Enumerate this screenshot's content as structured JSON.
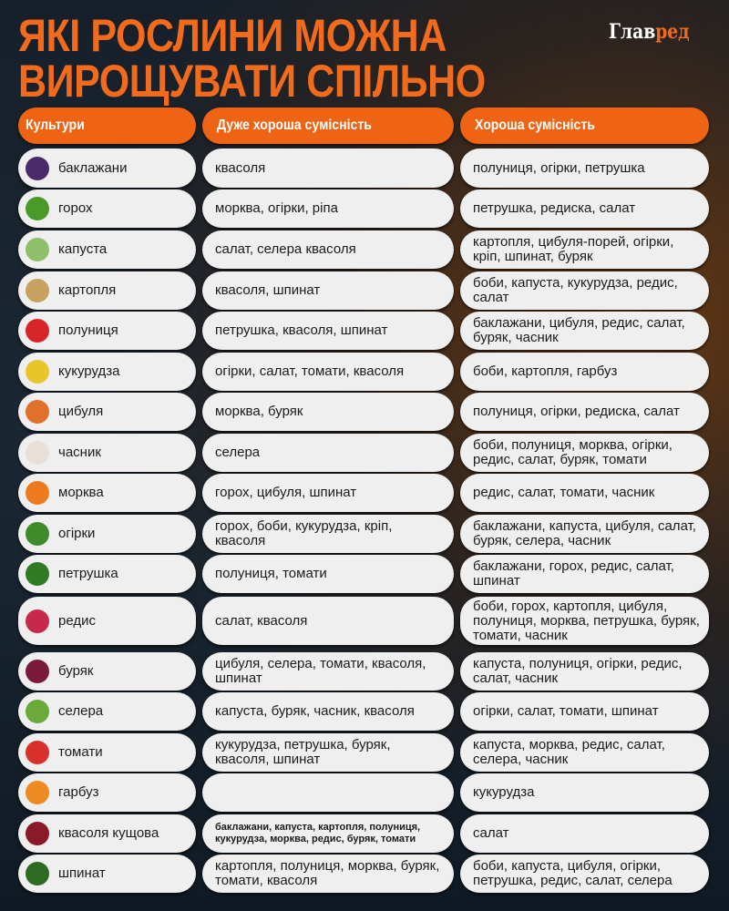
{
  "title": {
    "line1": "ЯКІ РОСЛИНИ МОЖНА",
    "line2": "ВИРОЩУВАТИ СПІЛЬНО"
  },
  "logo": {
    "part1": "Глав",
    "part2": "ред"
  },
  "colors": {
    "accent": "#ef6414",
    "cell": "#efefef"
  },
  "headers": [
    "Культури",
    "Дуже хороша сумісність",
    "Хороша сумісність"
  ],
  "rows": [
    {
      "crop": "баклажани",
      "icon": "eggplant-icon",
      "color": "#4b2a6b",
      "very_good": "квасоля",
      "good": "полуниця, огірки, петрушка"
    },
    {
      "crop": "горох",
      "icon": "peas-icon",
      "color": "#4a9a2a",
      "very_good": "морква, огірки, ріпа",
      "good": "петрушка, редиска, салат"
    },
    {
      "crop": "капуста",
      "icon": "cabbage-icon",
      "color": "#8fbf6a",
      "very_good": "салат, селера квасоля",
      "good": "картопля, цибуля-порей, огірки, кріп, шпинат, буряк"
    },
    {
      "crop": "картопля",
      "icon": "potato-icon",
      "color": "#c8a060",
      "very_good": "квасоля, шпинат",
      "good": "боби, капуста, кукурудза, редис, салат"
    },
    {
      "crop": "полуниця",
      "icon": "strawberry-icon",
      "color": "#d8252a",
      "very_good": "петрушка, квасоля, шпинат",
      "good": "баклажани, цибуля, редис, салат, буряк, часник"
    },
    {
      "crop": "кукурудза",
      "icon": "corn-icon",
      "color": "#e8c62a",
      "very_good": "огірки, салат, томати, квасоля",
      "good": "боби, картопля, гарбуз"
    },
    {
      "crop": "цибуля",
      "icon": "onion-icon",
      "color": "#e0702a",
      "very_good": "морква, буряк",
      "good": "полуниця, огірки, редиска, салат"
    },
    {
      "crop": "часник",
      "icon": "garlic-icon",
      "color": "#e8e0d8",
      "very_good": "селера",
      "good": "боби, полуниця, морква, огірки, редис, салат, буряк, томати"
    },
    {
      "crop": "морква",
      "icon": "carrot-icon",
      "color": "#ee7a20",
      "very_good": "горох, цибуля, шпинат",
      "good": "редис, салат, томати, часник"
    },
    {
      "crop": "огірки",
      "icon": "cucumber-icon",
      "color": "#3f8a2a",
      "very_good": "горох, боби, кукурудза, кріп, квасоля",
      "good": "баклажани, капуста, цибуля, салат, буряк, селера, часник"
    },
    {
      "crop": "петрушка",
      "icon": "parsley-icon",
      "color": "#2f7a22",
      "very_good": "полуниця, томати",
      "good": "баклажани, горох, редис, салат, шпинат"
    },
    {
      "crop": "редис",
      "icon": "radish-icon",
      "color": "#c8284a",
      "very_good": "салат, квасоля",
      "good": "боби, горох, картопля, цибуля, полуниця, морква, петрушка, буряк, томати, часник"
    },
    {
      "crop": "буряк",
      "icon": "beet-icon",
      "color": "#7a1a3a",
      "very_good": "цибуля, селера, томати, квасоля, шпинат",
      "good": "капуста, полуниця, огірки, редис, салат, часник"
    },
    {
      "crop": "селера",
      "icon": "celery-icon",
      "color": "#6aaa3a",
      "very_good": "капуста, буряк, часник, квасоля",
      "good": "огірки, салат, томати, шпинат"
    },
    {
      "crop": "томати",
      "icon": "tomato-icon",
      "color": "#d8302a",
      "very_good": "кукурудза, петрушка, буряк, квасоля, шпинат",
      "good": "капуста, морква, редис, салат, селера, часник"
    },
    {
      "crop": "гарбуз",
      "icon": "pumpkin-icon",
      "color": "#ee8a20",
      "very_good": "",
      "good": "кукурудза"
    },
    {
      "crop": "квасоля кущова",
      "icon": "beans-icon",
      "color": "#8a1a2a",
      "very_good": "баклажани, капуста, картопля, полуниця, кукурудза, морква, редис, буряк, томати",
      "very_good_small": true,
      "good": "салат"
    },
    {
      "crop": "шпинат",
      "icon": "spinach-icon",
      "color": "#2f6a22",
      "very_good": "картопля, полуниця, морква, буряк, томати, квасоля",
      "good": "боби, капуста, цибуля, огірки, петрушка, редис, салат, селера"
    }
  ]
}
